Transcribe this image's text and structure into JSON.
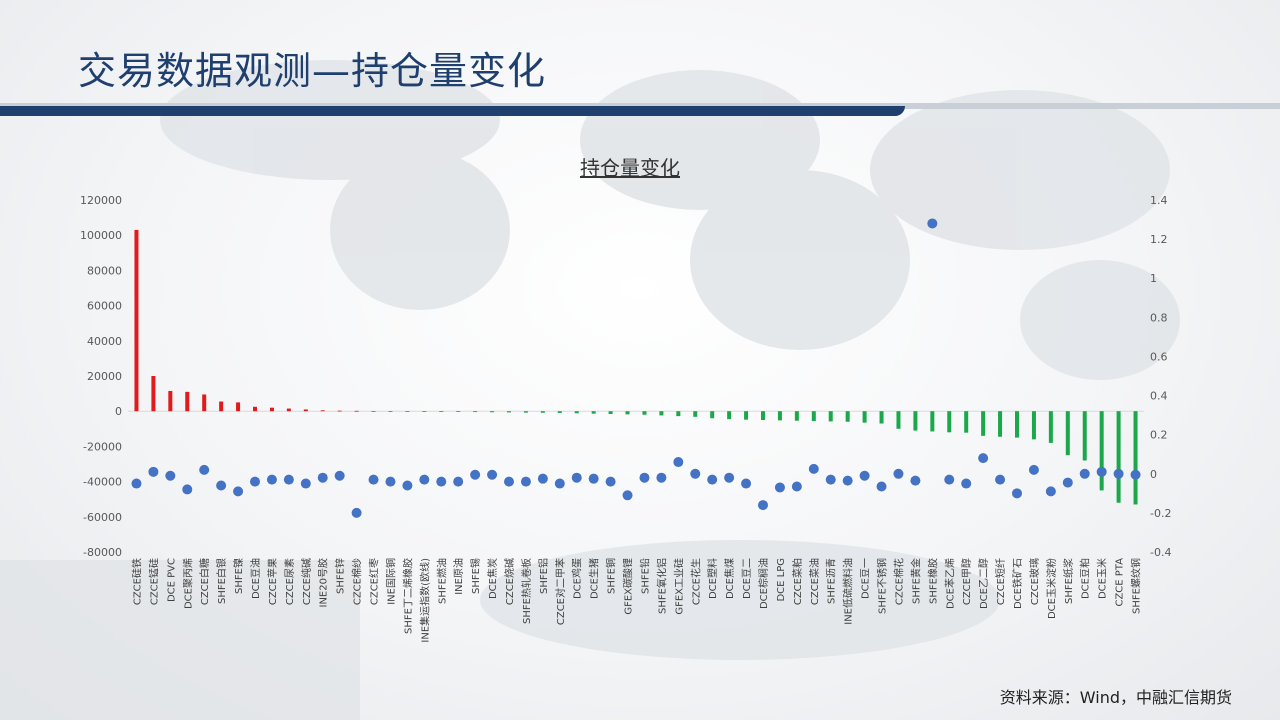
{
  "page": {
    "title": "交易数据观测—持仓量变化",
    "source": "资料来源：Wind，中融汇信期货"
  },
  "colors": {
    "positive_bar": "#e31a1a",
    "negative_bar": "#1aa84a",
    "dot": "#4472c4",
    "title": "#1f3f6e"
  },
  "chart_data": {
    "type": "bar",
    "title": "持仓量变化",
    "categories": [
      "CZCE硅铁",
      "CZCE锰硅",
      "DCE PVC",
      "DCE聚丙烯",
      "CZCE白糖",
      "SHFE白银",
      "SHFE镍",
      "DCE豆油",
      "CZCE苹果",
      "CZCE尿素",
      "CZCE纯碱",
      "INE20号胶",
      "SHFE锌",
      "CZCE棉纱",
      "CZCE红枣",
      "INE国际铜",
      "SHFE丁二烯橡胶",
      "INE集运指数(欧线)",
      "SHFE燃油",
      "INE原油",
      "SHFE锡",
      "DCE焦炭",
      "CZCE烧碱",
      "SHFE热轧卷板",
      "SHFE铝",
      "CZCE对二甲苯",
      "DCE鸡蛋",
      "DCE生猪",
      "SHFE铜",
      "GFEX碳酸锂",
      "SHFE铅",
      "SHFE氧化铝",
      "GFEX工业硅",
      "CZCE花生",
      "DCE塑料",
      "DCE焦煤",
      "DCE豆二",
      "DCE棕榈油",
      "DCE LPG",
      "CZCE菜粕",
      "CZCE菜油",
      "SHFE沥青",
      "INE低硫燃料油",
      "DCE豆一",
      "SHFE不锈钢",
      "CZCE棉花",
      "SHFE黄金",
      "SHFE橡胶",
      "DCE苯乙烯",
      "CZCE甲醇",
      "DCE乙二醇",
      "CZCE短纤",
      "DCE铁矿石",
      "CZCE玻璃",
      "DCE玉米淀粉",
      "SHFE纸浆",
      "DCE豆粕",
      "DCE玉米",
      "CZCE PTA",
      "SHFE螺纹钢"
    ],
    "series": [
      {
        "axis": "left",
        "values": [
          103000,
          20000,
          11500,
          11000,
          9500,
          5500,
          5000,
          2500,
          2000,
          1500,
          1000,
          500,
          300,
          200,
          -100,
          -150,
          -200,
          -250,
          -300,
          -400,
          -500,
          -600,
          -700,
          -800,
          -900,
          -1000,
          -1200,
          -1400,
          -1600,
          -1800,
          -2000,
          -2400,
          -2800,
          -3200,
          -4000,
          -4500,
          -4800,
          -5000,
          -5200,
          -5400,
          -5600,
          -5800,
          -6000,
          -6500,
          -7000,
          -10000,
          -11000,
          -11500,
          -12000,
          -12200,
          -14000,
          -14500,
          -15000,
          -16000,
          -18000,
          -25000,
          -28000,
          -45000,
          -52000,
          -53000
        ]
      },
      {
        "axis": "right",
        "values": [
          -0.05,
          0.01,
          -0.01,
          -0.08,
          0.02,
          -0.06,
          -0.09,
          -0.04,
          -0.03,
          -0.03,
          -0.05,
          -0.02,
          -0.01,
          -0.2,
          -0.03,
          -0.04,
          -0.06,
          -0.03,
          -0.04,
          -0.04,
          -0.005,
          -0.005,
          -0.04,
          -0.04,
          -0.025,
          -0.05,
          -0.02,
          -0.025,
          -0.04,
          -0.11,
          -0.02,
          -0.02,
          0.06,
          0.0,
          -0.03,
          -0.02,
          -0.05,
          -0.16,
          -0.07,
          -0.065,
          0.025,
          -0.03,
          -0.035,
          -0.01,
          -0.065,
          0.0,
          -0.035,
          1.28,
          -0.03,
          -0.05,
          0.08,
          -0.03,
          -0.1,
          0.02,
          -0.09,
          -0.045,
          0.0,
          0.01,
          0.0,
          -0.005
        ]
      }
    ],
    "y_left": {
      "ylim": [
        -80000,
        120000
      ],
      "ticks": [
        "120000",
        "100000",
        "80000",
        "60000",
        "40000",
        "20000",
        "0",
        "-20000",
        "-40000",
        "-60000",
        "-80000"
      ]
    },
    "y_right": {
      "ylim": [
        -0.4,
        1.4
      ],
      "ticks": [
        "1.4",
        "1.2",
        "1",
        "0.8",
        "0.6",
        "0.4",
        "0.2",
        "0",
        "-0.2",
        "-0.4"
      ]
    },
    "grid": false,
    "legend": "none"
  }
}
